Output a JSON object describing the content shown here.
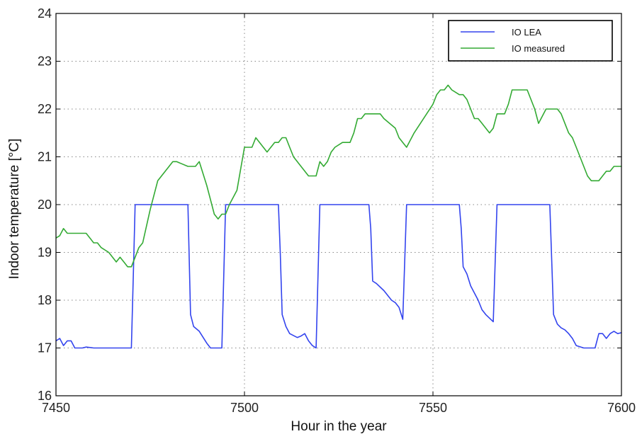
{
  "chart_data": {
    "type": "line",
    "title": "",
    "xlabel": "Hour in the year",
    "ylabel": "Indoor temperature [°C]",
    "xlim": [
      7450,
      7600
    ],
    "ylim": [
      16,
      24
    ],
    "xticks": [
      7450,
      7500,
      7550,
      7600
    ],
    "yticks": [
      16,
      17,
      18,
      19,
      20,
      21,
      22,
      23,
      24
    ],
    "grid": true,
    "legend_position": "top-right",
    "series": [
      {
        "name": "IO LEA",
        "color": "#3344ee",
        "x": [
          7450,
          7451,
          7452,
          7453,
          7454,
          7455,
          7456,
          7457,
          7458,
          7460,
          7465,
          7470,
          7470.5,
          7471,
          7475,
          7480,
          7484,
          7485,
          7485.7,
          7486.5,
          7488,
          7490,
          7491,
          7493,
          7494,
          7495,
          7500,
          7505,
          7509,
          7509.5,
          7510,
          7511,
          7512,
          7514,
          7515,
          7516,
          7517,
          7518,
          7519,
          7520,
          7525,
          7530,
          7533,
          7533.5,
          7534,
          7535,
          7537,
          7539,
          7540,
          7541,
          7542,
          7543,
          7545,
          7550,
          7555,
          7557,
          7557.5,
          7558,
          7559,
          7560,
          7561,
          7562,
          7563,
          7564,
          7566,
          7567,
          7570,
          7575,
          7580,
          7581,
          7582,
          7583,
          7584,
          7585,
          7586,
          7587,
          7588,
          7590,
          7592,
          7593,
          7594,
          7595,
          7596,
          7597,
          7598,
          7599,
          7600
        ],
        "y": [
          17.15,
          17.2,
          17.05,
          17.15,
          17.15,
          17.0,
          17.0,
          17.0,
          17.02,
          17.0,
          17.0,
          17.0,
          18.5,
          20.0,
          20.0,
          20.0,
          20.0,
          20.0,
          17.7,
          17.45,
          17.35,
          17.1,
          17.0,
          17.0,
          17.0,
          20.0,
          20.0,
          20.0,
          20.0,
          19.0,
          17.7,
          17.45,
          17.3,
          17.22,
          17.25,
          17.3,
          17.15,
          17.05,
          17.0,
          20.0,
          20.0,
          20.0,
          20.0,
          19.5,
          18.4,
          18.35,
          18.2,
          18.0,
          17.95,
          17.85,
          17.6,
          20.0,
          20.0,
          20.0,
          20.0,
          20.0,
          19.5,
          18.7,
          18.55,
          18.3,
          18.15,
          18.0,
          17.8,
          17.7,
          17.55,
          20.0,
          20.0,
          20.0,
          20.0,
          20.0,
          17.7,
          17.5,
          17.42,
          17.38,
          17.3,
          17.2,
          17.05,
          17.0,
          17.0,
          17.0,
          17.3,
          17.3,
          17.2,
          17.3,
          17.35,
          17.3,
          17.32
        ]
      },
      {
        "name": "IO measured",
        "color": "#33aa33",
        "x": [
          7450,
          7451,
          7452,
          7453,
          7455,
          7458,
          7459,
          7460,
          7461,
          7462,
          7464,
          7465,
          7466,
          7467,
          7468,
          7469,
          7470,
          7471,
          7472,
          7473,
          7475,
          7477,
          7480,
          7481,
          7482,
          7485,
          7486,
          7487,
          7488,
          7490,
          7491,
          7492,
          7493,
          7494,
          7495,
          7496,
          7498,
          7500,
          7501,
          7502,
          7503,
          7504,
          7506,
          7508,
          7509,
          7510,
          7511,
          7512,
          7513,
          7515,
          7517,
          7518,
          7519,
          7520,
          7521,
          7522,
          7523,
          7524,
          7526,
          7527,
          7528,
          7529,
          7530,
          7531,
          7532,
          7534,
          7535,
          7536,
          7537,
          7540,
          7541,
          7542,
          7543,
          7545,
          7550,
          7551,
          7552,
          7553,
          7554,
          7555,
          7557,
          7558,
          7559,
          7560,
          7561,
          7562,
          7563,
          7565,
          7566,
          7567,
          7568,
          7569,
          7570,
          7571,
          7572,
          7573,
          7575,
          7576,
          7577,
          7578,
          7580,
          7581,
          7583,
          7584,
          7585,
          7586,
          7587,
          7588,
          7589,
          7590,
          7591,
          7592,
          7593,
          7594,
          7596,
          7597,
          7598,
          7599,
          7600
        ],
        "y": [
          19.3,
          19.35,
          19.5,
          19.4,
          19.4,
          19.4,
          19.3,
          19.2,
          19.2,
          19.1,
          19.0,
          18.9,
          18.8,
          18.9,
          18.8,
          18.7,
          18.7,
          18.9,
          19.1,
          19.2,
          19.9,
          20.5,
          20.8,
          20.9,
          20.9,
          20.8,
          20.8,
          20.8,
          20.9,
          20.4,
          20.1,
          19.8,
          19.7,
          19.8,
          19.8,
          20.0,
          20.3,
          21.2,
          21.2,
          21.2,
          21.4,
          21.3,
          21.1,
          21.3,
          21.3,
          21.4,
          21.4,
          21.2,
          21.0,
          20.8,
          20.6,
          20.6,
          20.6,
          20.9,
          20.8,
          20.9,
          21.1,
          21.2,
          21.3,
          21.3,
          21.3,
          21.5,
          21.8,
          21.8,
          21.9,
          21.9,
          21.9,
          21.9,
          21.8,
          21.6,
          21.4,
          21.3,
          21.2,
          21.5,
          22.1,
          22.3,
          22.4,
          22.4,
          22.5,
          22.4,
          22.3,
          22.3,
          22.2,
          22.0,
          21.8,
          21.8,
          21.7,
          21.5,
          21.6,
          21.9,
          21.9,
          21.9,
          22.1,
          22.4,
          22.4,
          22.4,
          22.4,
          22.2,
          22.0,
          21.7,
          22.0,
          22.0,
          22.0,
          21.9,
          21.7,
          21.5,
          21.4,
          21.2,
          21.0,
          20.8,
          20.6,
          20.5,
          20.5,
          20.5,
          20.7,
          20.7,
          20.8,
          20.8,
          20.8
        ]
      }
    ]
  }
}
